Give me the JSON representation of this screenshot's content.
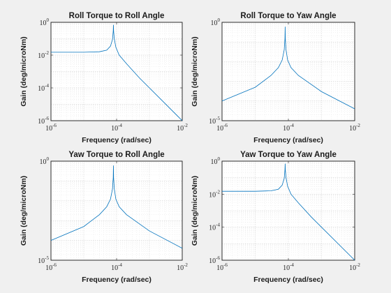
{
  "chart_data": [
    {
      "type": "line",
      "title": "Roll Torque to Roll Angle",
      "xlabel": "Frequency (rad/sec)",
      "ylabel": "Gain (deg/microNm)",
      "xscale": "log",
      "yscale": "log",
      "xlim": [
        1e-06,
        0.01
      ],
      "ylim": [
        1e-06,
        1
      ],
      "xticks": [
        1e-06,
        0.0001,
        0.01
      ],
      "yticks": [
        1e-06,
        0.0001,
        0.01,
        1
      ],
      "grid": "on",
      "color": "#0072bd",
      "series": [
        {
          "x": [
            1e-06,
            1e-05,
            3e-05,
            5e-05,
            6.5e-05,
            7.5e-05,
            7.9e-05,
            8e-05,
            8.1e-05,
            8.5e-05,
            9.5e-05,
            0.00012,
            0.0002,
            0.0005,
            0.001,
            0.01
          ],
          "y": [
            0.015,
            0.015,
            0.016,
            0.02,
            0.035,
            0.09,
            0.3,
            0.7,
            0.3,
            0.1,
            0.03,
            0.01,
            0.003,
            0.0004,
            0.0001,
            1e-06
          ]
        }
      ]
    },
    {
      "type": "line",
      "title": "Roll Torque to Yaw Angle",
      "xlabel": "Frequency (rad/sec)",
      "ylabel": "Gain (deg/microNm)",
      "xscale": "log",
      "yscale": "log",
      "xlim": [
        1e-06,
        0.01
      ],
      "ylim": [
        1e-05,
        1
      ],
      "xticks": [
        1e-06,
        0.0001,
        0.01
      ],
      "yticks": [
        1e-05,
        1
      ],
      "grid": "on",
      "color": "#0072bd",
      "series": [
        {
          "x": [
            1e-06,
            1e-05,
            3e-05,
            5e-05,
            6.5e-05,
            7.5e-05,
            7.9e-05,
            8e-05,
            8.1e-05,
            8.5e-05,
            9.5e-05,
            0.00012,
            0.0002,
            0.001,
            0.01
          ],
          "y": [
            0.0001,
            0.0005,
            0.002,
            0.005,
            0.012,
            0.04,
            0.15,
            0.6,
            0.15,
            0.04,
            0.012,
            0.005,
            0.002,
            0.0003,
            4e-05
          ]
        }
      ]
    },
    {
      "type": "line",
      "title": "Yaw Torque to Roll Angle",
      "xlabel": "Frequency (rad/sec)",
      "ylabel": "Gain (deg/microNm)",
      "xscale": "log",
      "yscale": "log",
      "xlim": [
        1e-06,
        0.01
      ],
      "ylim": [
        1e-05,
        1
      ],
      "xticks": [
        1e-06,
        0.0001,
        0.01
      ],
      "yticks": [
        1e-05,
        1
      ],
      "grid": "on",
      "color": "#0072bd",
      "series": [
        {
          "x": [
            1e-06,
            1e-05,
            3e-05,
            5e-05,
            6.5e-05,
            7.5e-05,
            7.9e-05,
            8e-05,
            8.1e-05,
            8.5e-05,
            9.5e-05,
            0.00012,
            0.0002,
            0.001,
            0.01
          ],
          "y": [
            0.0001,
            0.0005,
            0.002,
            0.005,
            0.012,
            0.04,
            0.15,
            0.6,
            0.15,
            0.04,
            0.012,
            0.005,
            0.002,
            0.0003,
            4e-05
          ]
        }
      ]
    },
    {
      "type": "line",
      "title": "Yaw Torque to Yaw Angle",
      "xlabel": "Frequency (rad/sec)",
      "ylabel": "Gain (deg/microNm)",
      "xscale": "log",
      "yscale": "log",
      "xlim": [
        1e-06,
        0.01
      ],
      "ylim": [
        1e-06,
        1
      ],
      "xticks": [
        1e-06,
        0.0001,
        0.01
      ],
      "yticks": [
        1e-06,
        0.0001,
        0.01,
        1
      ],
      "grid": "on",
      "color": "#0072bd",
      "series": [
        {
          "x": [
            1e-06,
            1e-05,
            3e-05,
            5e-05,
            6.5e-05,
            7.5e-05,
            7.9e-05,
            8e-05,
            8.1e-05,
            8.5e-05,
            9.5e-05,
            0.00012,
            0.0002,
            0.0005,
            0.001,
            0.01
          ],
          "y": [
            0.015,
            0.015,
            0.016,
            0.02,
            0.035,
            0.09,
            0.3,
            0.7,
            0.3,
            0.1,
            0.03,
            0.01,
            0.003,
            0.0004,
            0.0001,
            1e-06
          ]
        }
      ]
    }
  ]
}
